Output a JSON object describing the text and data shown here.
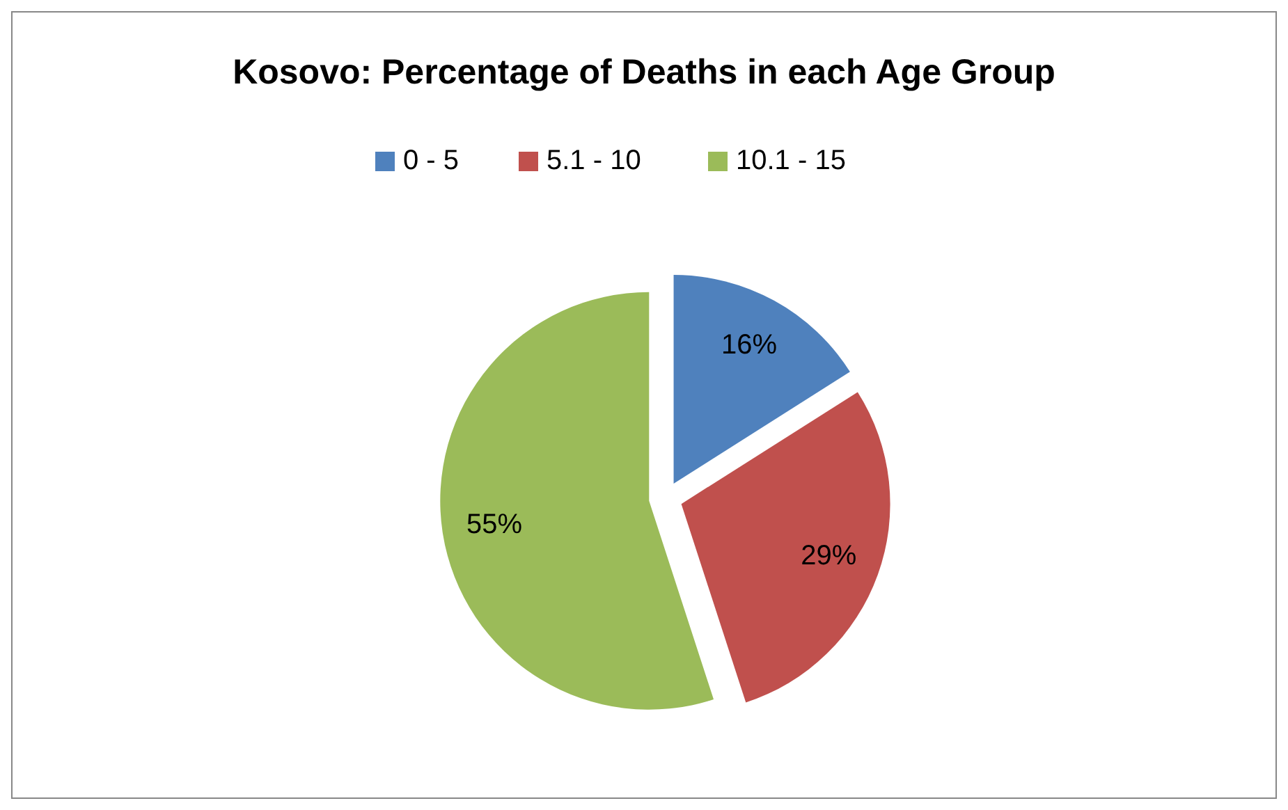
{
  "chart_data": {
    "type": "pie",
    "title": "Kosovo: Percentage of Deaths in each Age Group",
    "categories": [
      "0 - 5",
      "5.1 - 10",
      "10.1 - 15"
    ],
    "values": [
      16,
      29,
      55
    ],
    "colors": [
      "#4f81bd",
      "#c0504d",
      "#9bbb59"
    ],
    "value_labels": [
      "16%",
      "29%",
      "55%"
    ],
    "legend": "top"
  }
}
